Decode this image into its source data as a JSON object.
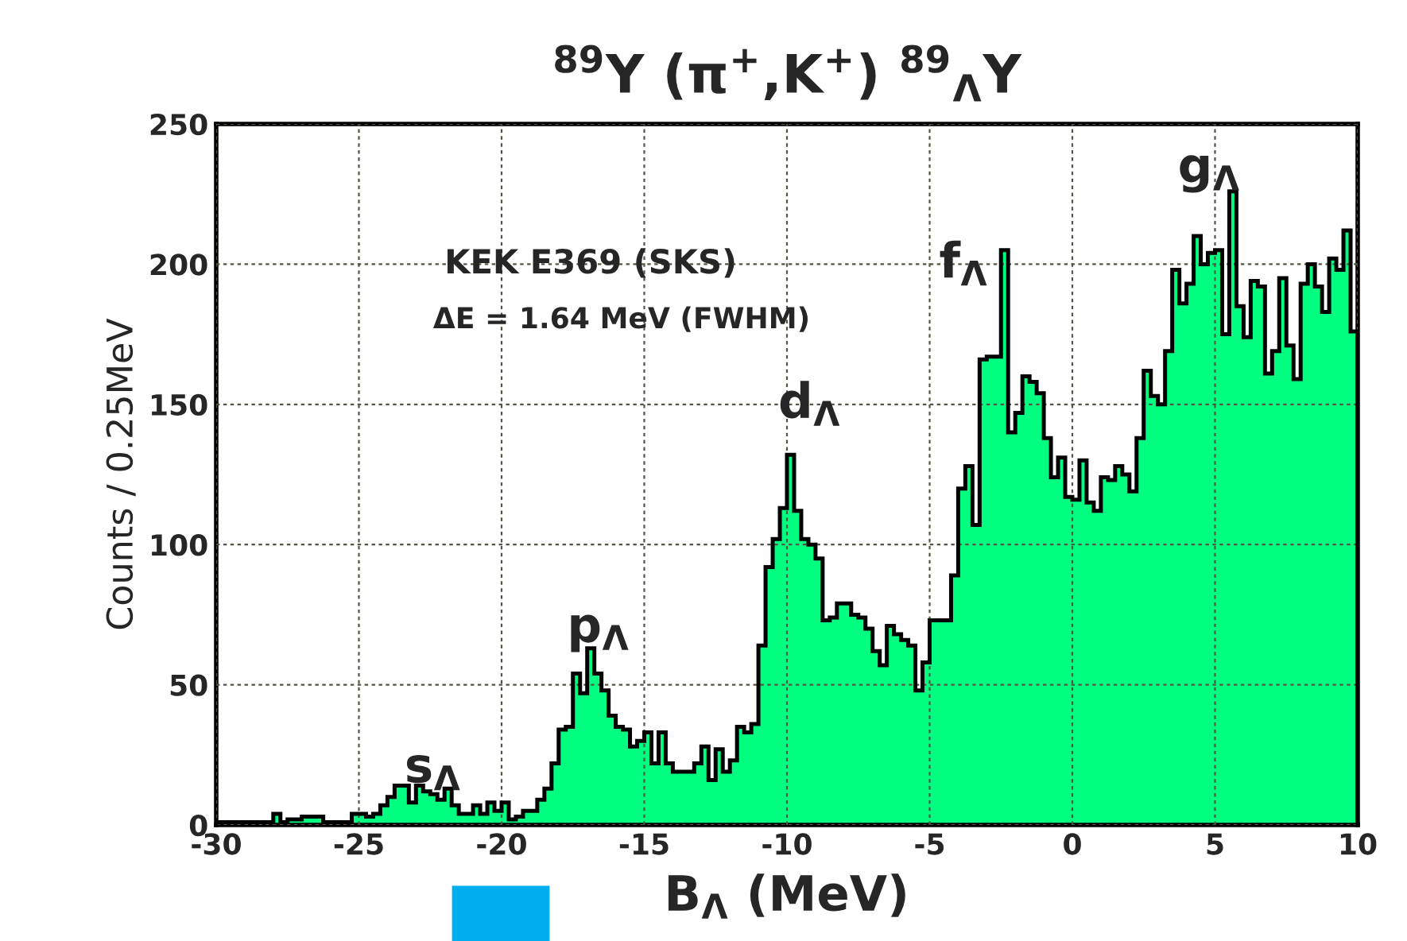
{
  "chart_data": {
    "type": "histogram",
    "title": "$^{89}$Y (π$^{+}$,K$^{+}$) $^{89}$$_{Λ}$Y",
    "xlabel": "B$_{Λ}$ (MeV)",
    "ylabel": "Counts / 0.25MeV",
    "color": "#00ff80",
    "bins": [
      -30,
      -29.75,
      -29.5,
      -29.25,
      -29,
      -28.75,
      -28.5,
      -28.25,
      -28,
      -27.75,
      -27.5,
      -27.25,
      -27,
      -26.75,
      -26.5,
      -26.25,
      -26,
      -25.75,
      -25.5,
      -25.25,
      -25,
      -24.75,
      -24.5,
      -24.25,
      -24,
      -23.75,
      -23.5,
      -23.25,
      -23,
      -22.75,
      -22.5,
      -22.25,
      -22,
      -21.75,
      -21.5,
      -21.25,
      -21,
      -20.75,
      -20.5,
      -20.25,
      -20,
      -19.75,
      -19.5,
      -19.25,
      -19,
      -18.75,
      -18.5,
      -18.25,
      -18,
      -17.75,
      -17.5,
      -17.25,
      -17,
      -16.75,
      -16.5,
      -16.25,
      -16,
      -15.75,
      -15.5,
      -15.25,
      -15,
      -14.75,
      -14.5,
      -14.25,
      -14,
      -13.75,
      -13.5,
      -13.25,
      -13,
      -12.75,
      -12.5,
      -12.25,
      -12,
      -11.75,
      -11.5,
      -11.25,
      -11,
      -10.75,
      -10.5,
      -10.25,
      -10,
      -9.75,
      -9.5,
      -9.25,
      -9,
      -8.75,
      -8.5,
      -8.25,
      -8,
      -7.75,
      -7.5,
      -7.25,
      -7,
      -6.75,
      -6.5,
      -6.25,
      -6,
      -5.75,
      -5.5,
      -5.25,
      -5,
      -4.75,
      -4.5,
      -4.25,
      -4,
      -3.75,
      -3.5,
      -3.25,
      -3,
      -2.75,
      -2.5,
      -2.25,
      -2,
      -1.75,
      -1.5,
      -1.25,
      -1,
      -0.75,
      -0.5,
      -0.25,
      0,
      0.25,
      0.5,
      0.75,
      1,
      1.25,
      1.5,
      1.75,
      2,
      2.25,
      2.5,
      2.75,
      3,
      3.25,
      3.5,
      3.75,
      4,
      4.25,
      4.5,
      4.75,
      5,
      5.25,
      5.5,
      5.75,
      6,
      6.25,
      6.5,
      6.75,
      7,
      7.25,
      7.5,
      7.75,
      8,
      8.25,
      8.5,
      8.75,
      9,
      9.25,
      9.5,
      9.75,
      10
    ],
    "values": [
      1,
      1,
      1,
      1,
      1,
      1,
      1,
      1,
      4,
      1,
      2,
      2,
      3,
      3,
      3,
      1,
      1,
      1,
      1,
      4,
      4,
      3,
      4,
      7,
      10,
      14,
      14,
      8,
      14,
      12,
      11,
      9,
      13,
      7,
      4,
      4,
      7,
      4,
      8,
      5,
      8,
      2,
      3,
      5,
      5,
      9,
      13,
      22,
      34,
      35,
      54,
      47,
      63,
      54,
      48,
      39,
      35,
      34,
      28,
      30,
      33,
      22,
      33,
      22,
      19,
      19,
      19,
      22,
      28,
      16,
      27,
      19,
      23,
      35,
      33,
      36,
      64,
      92,
      102,
      113,
      132,
      112,
      102,
      100,
      95,
      73,
      74,
      79,
      79,
      75,
      74,
      70,
      62,
      57,
      71,
      68,
      66,
      64,
      48,
      58,
      73,
      73,
      73,
      89,
      120,
      128,
      107,
      166,
      167,
      167,
      205,
      140,
      147,
      160,
      158,
      154,
      138,
      124,
      131,
      117,
      116,
      130,
      115,
      112,
      124,
      123,
      128,
      125,
      119,
      138,
      162,
      153,
      150,
      169,
      198,
      186,
      193,
      210,
      200,
      204,
      205,
      175,
      226,
      185,
      174,
      194,
      192,
      161,
      169,
      195,
      171,
      159,
      193,
      200,
      192,
      183,
      202,
      198,
      212,
      176
    ],
    "xlim": [
      -30,
      10
    ],
    "ylim": [
      0,
      250
    ],
    "xticks": [
      -30,
      -25,
      -20,
      -15,
      -10,
      -5,
      0,
      5,
      10
    ],
    "yticks": [
      0,
      50,
      100,
      150,
      200,
      250
    ],
    "grid": true,
    "annotations": [
      "KEK E369 (SKS)",
      "ΔE = 1.64 MeV (FWHM)",
      "s$_{Λ}$",
      "p$_{Λ}$",
      "d$_{Λ}$",
      "f$_{Λ}$",
      "g$_{Λ}$"
    ]
  }
}
